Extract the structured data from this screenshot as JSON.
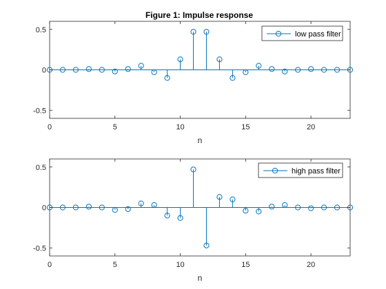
{
  "figure": {
    "background": "#ffffff",
    "stem_color": "#0072bd",
    "axis_color": "#262626"
  },
  "chart_data": [
    {
      "type": "stem",
      "title": "Figure 1: Impulse response",
      "xlabel": "n",
      "ylabel": "",
      "xlim": [
        0,
        23
      ],
      "ylim": [
        -0.6,
        0.6
      ],
      "xticks": [
        0,
        5,
        10,
        15,
        20
      ],
      "yticks": [
        -0.5,
        0,
        0.5
      ],
      "ytick_labels": [
        "-0.5",
        "0",
        "0.5"
      ],
      "grid": false,
      "legend_position": "top-right",
      "series": [
        {
          "name": "low pass filter",
          "x": [
            0,
            1,
            2,
            3,
            4,
            5,
            6,
            7,
            8,
            9,
            10,
            11,
            12,
            13,
            14,
            15,
            16,
            17,
            18,
            19,
            20,
            21,
            22,
            23
          ],
          "values": [
            0.0,
            0.0,
            0.0,
            0.01,
            0.0,
            -0.02,
            0.01,
            0.05,
            -0.03,
            -0.1,
            0.13,
            0.47,
            0.47,
            0.13,
            -0.1,
            -0.03,
            0.05,
            0.01,
            -0.02,
            0.0,
            0.01,
            0.0,
            0.0,
            0.0
          ]
        }
      ]
    },
    {
      "type": "stem",
      "title": "",
      "xlabel": "n",
      "ylabel": "",
      "xlim": [
        0,
        23
      ],
      "ylim": [
        -0.6,
        0.6
      ],
      "xticks": [
        0,
        5,
        10,
        15,
        20
      ],
      "yticks": [
        -0.5,
        0,
        0.5
      ],
      "ytick_labels": [
        "-0.5",
        "0",
        "0.5"
      ],
      "grid": false,
      "legend_position": "top-right",
      "series": [
        {
          "name": "high pass filter",
          "x": [
            0,
            1,
            2,
            3,
            4,
            5,
            6,
            7,
            8,
            9,
            10,
            11,
            12,
            13,
            14,
            15,
            16,
            17,
            18,
            19,
            20,
            21,
            22,
            23
          ],
          "values": [
            0.0,
            0.0,
            0.0,
            0.01,
            0.0,
            -0.03,
            -0.02,
            0.05,
            0.03,
            -0.1,
            -0.13,
            0.47,
            -0.47,
            0.13,
            0.1,
            -0.04,
            -0.05,
            0.01,
            0.03,
            0.0,
            -0.01,
            0.0,
            0.0,
            0.0
          ]
        }
      ]
    }
  ]
}
